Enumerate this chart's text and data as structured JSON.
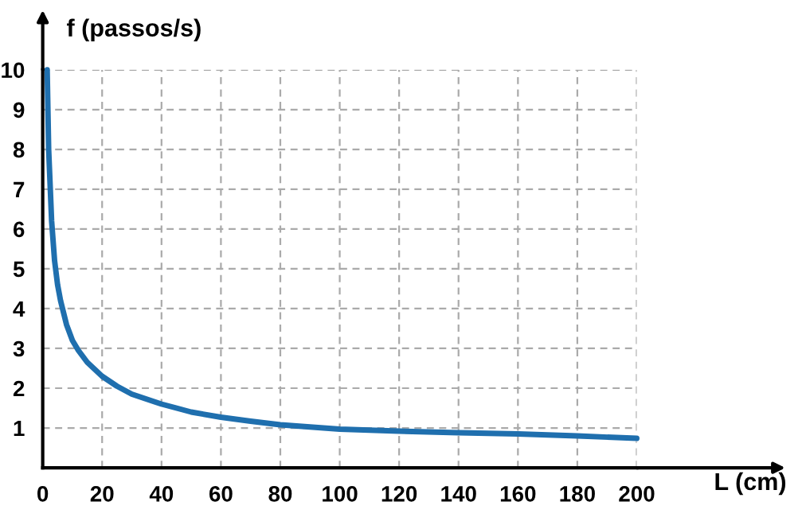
{
  "chart_data": {
    "type": "line",
    "xlabel": "L (cm)",
    "ylabel": "f (passos/s)",
    "series": [
      {
        "color": "#1f6fae",
        "x": [
          1.5,
          2,
          3,
          4,
          5,
          6,
          7,
          8,
          10,
          12,
          15,
          20,
          25,
          30,
          40,
          50,
          60,
          70,
          80,
          100,
          120,
          140,
          160,
          180,
          200
        ],
        "values": [
          10,
          8,
          6.2,
          5.2,
          4.6,
          4.2,
          3.9,
          3.6,
          3.2,
          2.95,
          2.65,
          2.3,
          2.05,
          1.85,
          1.6,
          1.4,
          1.27,
          1.17,
          1.08,
          0.97,
          0.92,
          0.88,
          0.85,
          0.8,
          0.74
        ]
      }
    ],
    "xlim": [
      0,
      200
    ],
    "ylim": [
      0,
      10
    ],
    "xticks": [
      0,
      20,
      40,
      60,
      80,
      100,
      120,
      140,
      160,
      180,
      200
    ],
    "yticks": [
      1,
      2,
      3,
      4,
      5,
      6,
      7,
      8,
      9,
      10
    ],
    "grid": true,
    "marker": "none",
    "line_style": "solid",
    "legend": false
  }
}
